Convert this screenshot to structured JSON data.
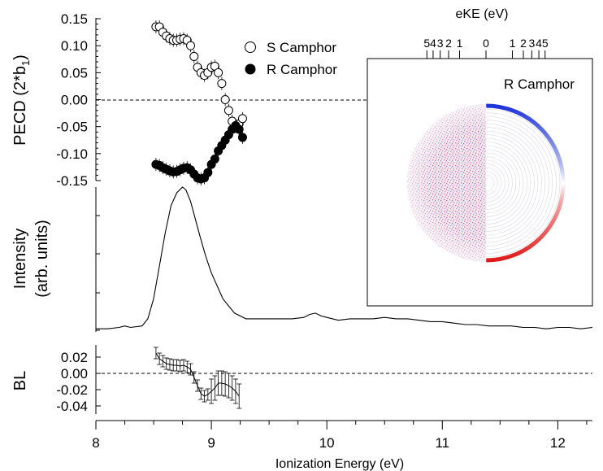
{
  "chart_data": [
    {
      "panel": "top",
      "type": "scatter",
      "ylabel": "PECD (2*b",
      "ylabel_sub": "1",
      "ylabel_close": ")",
      "ylim": [
        -0.15,
        0.15
      ],
      "yticks": [
        "0.15",
        "0.10",
        "0.05",
        "0.00",
        "-0.05",
        "-0.10",
        "-0.15"
      ],
      "yticks_values": [
        0.15,
        0.1,
        0.05,
        0.0,
        -0.05,
        -0.1,
        -0.15
      ],
      "xlim": [
        8,
        12.3
      ],
      "zero_line": true,
      "legend_position": "top-center",
      "series": [
        {
          "name": "S Camphor",
          "marker": "open-circle",
          "x": [
            8.52,
            8.55,
            8.58,
            8.61,
            8.64,
            8.67,
            8.7,
            8.73,
            8.76,
            8.79,
            8.82,
            8.85,
            8.88,
            8.91,
            8.94,
            8.97,
            9.0,
            9.03,
            9.06,
            9.09,
            9.12,
            9.15,
            9.18,
            9.21,
            9.24,
            9.27
          ],
          "y": [
            0.135,
            0.135,
            0.125,
            0.118,
            0.113,
            0.11,
            0.11,
            0.112,
            0.113,
            0.11,
            0.1,
            0.08,
            0.06,
            0.05,
            0.045,
            0.05,
            0.06,
            0.062,
            0.05,
            0.03,
            0.0,
            -0.02,
            -0.04,
            -0.05,
            -0.045,
            -0.035
          ]
        },
        {
          "name": "R Camphor",
          "marker": "filled-circle",
          "x": [
            8.52,
            8.55,
            8.58,
            8.61,
            8.64,
            8.67,
            8.7,
            8.73,
            8.76,
            8.79,
            8.82,
            8.85,
            8.88,
            8.91,
            8.94,
            8.97,
            9.0,
            9.03,
            9.06,
            9.09,
            9.12,
            9.15,
            9.18,
            9.21,
            9.24,
            9.27
          ],
          "y": [
            -0.12,
            -0.122,
            -0.126,
            -0.129,
            -0.132,
            -0.134,
            -0.133,
            -0.13,
            -0.127,
            -0.126,
            -0.13,
            -0.138,
            -0.145,
            -0.147,
            -0.145,
            -0.135,
            -0.12,
            -0.11,
            -0.095,
            -0.085,
            -0.075,
            -0.065,
            -0.055,
            -0.048,
            -0.055,
            -0.07
          ]
        }
      ]
    },
    {
      "panel": "middle",
      "type": "line",
      "ylabel_line1": "Intensity",
      "ylabel_line2": "(arb. units)",
      "xlim": [
        8,
        12.3
      ],
      "ylim": [
        0,
        1
      ],
      "series": [
        {
          "name": "",
          "x": [
            8.0,
            8.1,
            8.2,
            8.25,
            8.3,
            8.4,
            8.45,
            8.5,
            8.55,
            8.6,
            8.65,
            8.7,
            8.75,
            8.78,
            8.82,
            8.86,
            8.9,
            8.95,
            9.0,
            9.05,
            9.1,
            9.2,
            9.3,
            9.4,
            9.5,
            9.6,
            9.7,
            9.8,
            9.85,
            9.9,
            9.95,
            10.0,
            10.1,
            10.2,
            10.3,
            10.4,
            10.5,
            10.6,
            10.7,
            10.8,
            10.9,
            11.0,
            11.1,
            11.2,
            11.3,
            11.4,
            11.5,
            11.6,
            11.7,
            11.8,
            11.9,
            12.0,
            12.1,
            12.2,
            12.3
          ],
          "y": [
            0.01,
            0.01,
            0.02,
            0.03,
            0.02,
            0.03,
            0.08,
            0.22,
            0.45,
            0.68,
            0.87,
            0.96,
            1.0,
            0.98,
            0.9,
            0.78,
            0.66,
            0.52,
            0.4,
            0.31,
            0.22,
            0.12,
            0.08,
            0.08,
            0.08,
            0.08,
            0.08,
            0.09,
            0.11,
            0.12,
            0.1,
            0.09,
            0.07,
            0.08,
            0.08,
            0.08,
            0.09,
            0.08,
            0.08,
            0.07,
            0.06,
            0.06,
            0.05,
            0.04,
            0.04,
            0.03,
            0.03,
            0.03,
            0.02,
            0.02,
            0.01,
            0.02,
            0.02,
            0.01,
            0.02
          ]
        }
      ]
    },
    {
      "panel": "bottom",
      "type": "line",
      "ylabel": "BL",
      "ylim": [
        -0.05,
        0.035
      ],
      "yticks": [
        "0.02",
        "0.00",
        "-0.02",
        "-0.04"
      ],
      "yticks_values": [
        0.02,
        0.0,
        -0.02,
        -0.04
      ],
      "xlabel": "Ionization Energy (eV)",
      "xlim": [
        8,
        12.3
      ],
      "xticks": [
        "8",
        "9",
        "10",
        "11",
        "12"
      ],
      "xticks_values": [
        8,
        9,
        10,
        11,
        12
      ],
      "zero_line": true,
      "series": [
        {
          "name": "",
          "x": [
            8.52,
            8.55,
            8.58,
            8.61,
            8.64,
            8.67,
            8.7,
            8.73,
            8.76,
            8.79,
            8.82,
            8.85,
            8.88,
            8.91,
            8.94,
            8.97,
            9.0,
            9.03,
            9.06,
            9.09,
            9.12,
            9.15,
            9.18,
            9.21,
            9.24
          ],
          "y": [
            0.025,
            0.018,
            0.015,
            0.012,
            0.011,
            0.01,
            0.01,
            0.009,
            0.01,
            0.008,
            0.005,
            -0.005,
            -0.015,
            -0.025,
            -0.028,
            -0.026,
            -0.022,
            -0.018,
            -0.012,
            -0.012,
            -0.013,
            -0.015,
            -0.018,
            -0.022,
            -0.028
          ]
        }
      ]
    }
  ],
  "inset": {
    "top_axis_label": "eKE (eV)",
    "ticks_left": [
      "5",
      "4",
      "3",
      "2",
      "1"
    ],
    "ticks_right": [
      "1",
      "2",
      "3",
      "4",
      "5"
    ],
    "tick_zero": "0",
    "title": "R Camphor",
    "colors": {
      "positive": "#e01818",
      "negative": "#1e34d8"
    }
  }
}
